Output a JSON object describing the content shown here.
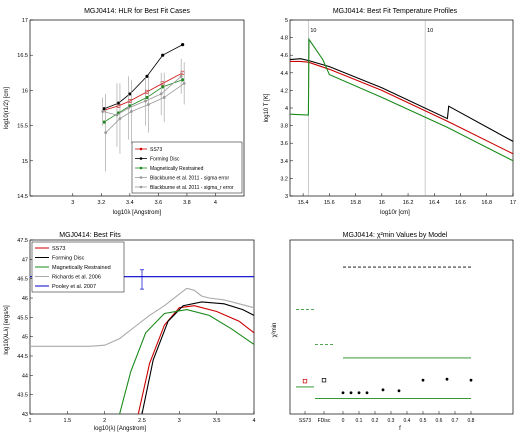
{
  "chart_data": [
    {
      "type": "line",
      "title": "MGJ0414:  HLR for Best Fit Cases",
      "xlabel": "log10λ [Angstrom]",
      "ylabel": "log10(r1/2) [cm]",
      "xlim": [
        2.7,
        4.2
      ],
      "ylim": [
        14.5,
        17.0
      ],
      "xticks": [
        "3",
        "3.2",
        "3.4",
        "3.6",
        "3.8",
        "4"
      ],
      "yticks": [
        "14.5",
        "15",
        "15.5",
        "16",
        "16.5",
        "17"
      ],
      "legend_position": "lower-right",
      "x": [
        3.22,
        3.32,
        3.4,
        3.52,
        3.63,
        3.77
      ],
      "series": [
        {
          "name": "SS73",
          "color": "#cc0000",
          "values": [
            15.72,
            15.78,
            15.85,
            15.98,
            16.1,
            16.25
          ]
        },
        {
          "name": "Forming Disc",
          "color": "#000000",
          "values": [
            15.74,
            15.82,
            15.95,
            16.2,
            16.5,
            16.65
          ]
        },
        {
          "name": "Magnetically Restrained",
          "color": "#1a8a1a",
          "values": [
            15.55,
            15.68,
            15.78,
            15.9,
            16.05,
            16.15
          ]
        },
        {
          "name": "Blackburne et al. 2011 - sigma error",
          "color": "#999999",
          "values": [
            15.7,
            15.65,
            15.75,
            15.85,
            15.95,
            16.2
          ],
          "err": [
            0.2,
            0.45,
            0.45,
            0.35,
            0.3,
            0.25
          ]
        },
        {
          "name": "Blackburne et al. 2011 - sigma_r error",
          "color": "#999999",
          "values": [
            15.4,
            15.6,
            15.7,
            15.8,
            15.9,
            16.1
          ],
          "err": [
            0.55,
            0.5,
            0.45,
            0.4,
            0.35,
            0.3
          ]
        }
      ]
    },
    {
      "type": "line",
      "title": "MGJ0414:  Best Fit Temperature Profiles",
      "xlabel": "log10r [cm]",
      "ylabel": "log10 T [K]",
      "xlim": [
        15.3,
        17.0
      ],
      "ylim": [
        3.0,
        5.0
      ],
      "xticks": [
        "15.4",
        "15.6",
        "15.8",
        "16",
        "16.2",
        "16.4",
        "16.6",
        "16.8",
        "17"
      ],
      "yticks": [
        "3",
        "3.2",
        "3.4",
        "3.6",
        "3.8",
        "4",
        "4.2",
        "4.4",
        "4.6",
        "4.8",
        "5"
      ],
      "annotations": [
        "10",
        "10"
      ],
      "vlines": [
        15.44,
        16.33
      ],
      "series": [
        {
          "name": "SS73",
          "color": "#cc0000",
          "x": [
            15.3,
            15.38,
            15.44,
            15.6,
            16.0,
            16.5,
            17.0
          ],
          "values": [
            4.53,
            4.53,
            4.52,
            4.44,
            4.2,
            3.85,
            3.48
          ]
        },
        {
          "name": "Forming Disc",
          "color": "#000000",
          "x": [
            15.3,
            15.38,
            15.44,
            15.6,
            16.0,
            16.5,
            16.51,
            17.0
          ],
          "values": [
            4.55,
            4.56,
            4.54,
            4.47,
            4.23,
            3.88,
            4.02,
            3.62
          ]
        },
        {
          "name": "Magnetically Restrained",
          "color": "#1a8a1a",
          "x": [
            15.3,
            15.44,
            15.445,
            15.55,
            15.6,
            16.0,
            16.5,
            17.0
          ],
          "values": [
            3.93,
            3.92,
            4.78,
            4.55,
            4.38,
            4.12,
            3.78,
            3.4
          ]
        }
      ]
    },
    {
      "type": "line",
      "title": "MGJ0414:  Best Fits",
      "xlabel": "log10(λ) [Angstrom]",
      "ylabel": "log10(λLλ) [ergs/s]",
      "xlim": [
        1.0,
        4.0
      ],
      "ylim": [
        43.0,
        47.5
      ],
      "xticks": [
        "1",
        "1.5",
        "2",
        "2.5",
        "3",
        "3.5",
        "4"
      ],
      "yticks": [
        "43",
        "43.5",
        "44",
        "44.5",
        "45",
        "45.5",
        "46",
        "46.5",
        "47",
        "47.5"
      ],
      "legend_position": "top-left",
      "series": [
        {
          "name": "SS73",
          "color": "#cc0000",
          "x": [
            2.45,
            2.6,
            2.8,
            3.0,
            3.2,
            3.5,
            3.8,
            4.0
          ],
          "values": [
            43.0,
            44.3,
            45.3,
            45.75,
            45.8,
            45.65,
            45.4,
            45.1
          ]
        },
        {
          "name": "Forming Disc",
          "color": "#000000",
          "x": [
            2.5,
            2.65,
            2.85,
            3.05,
            3.3,
            3.6,
            3.85,
            4.0
          ],
          "values": [
            43.0,
            44.4,
            45.4,
            45.8,
            45.9,
            45.85,
            45.7,
            45.55
          ]
        },
        {
          "name": "Magnetically Restrained",
          "color": "#1a8a1a",
          "x": [
            2.2,
            2.35,
            2.55,
            2.8,
            3.1,
            3.4,
            3.7,
            4.0
          ],
          "values": [
            43.0,
            44.1,
            45.1,
            45.6,
            45.7,
            45.55,
            45.2,
            44.8
          ]
        },
        {
          "name": "Richards et al. 2006",
          "color": "#aaaaaa",
          "x": [
            1.0,
            1.8,
            2.0,
            2.2,
            2.4,
            2.6,
            2.8,
            3.0,
            3.1,
            3.2,
            3.3,
            3.4,
            3.6,
            3.8,
            4.0
          ],
          "values": [
            44.75,
            44.75,
            44.78,
            44.95,
            45.25,
            45.55,
            45.8,
            46.1,
            46.25,
            46.2,
            46.05,
            46.0,
            45.95,
            45.85,
            45.75
          ]
        },
        {
          "name": "Pooley et al. 2007",
          "color": "#0000cc",
          "x": [
            1.0,
            4.0
          ],
          "values": [
            46.55,
            46.55
          ]
        }
      ],
      "point": {
        "x": 2.5,
        "y": 46.48,
        "err": 0.25
      }
    },
    {
      "type": "scatter",
      "title": "MGJ0414:  χ²min Values by Model",
      "xlabel": "f",
      "ylabel": "χ²min",
      "xticks": [
        "SS73",
        "FDisc",
        "0",
        "0.1",
        "0.2",
        "0.3",
        "0.4",
        "0.5",
        "0.6",
        "0.7",
        "0.8"
      ],
      "points": [
        11,
        11,
        11,
        11,
        12.5,
        12,
        17.5,
        18,
        17.5
      ],
      "points_f": [
        0.0,
        0.05,
        0.1,
        0.15,
        0.25,
        0.35,
        0.5,
        0.65,
        0.8
      ],
      "ss73_point": 17,
      "fdisc_point": 17.5,
      "hlines": [
        {
          "label": "black dashed",
          "value": 76
        },
        {
          "label": "green dashed SS73",
          "value": 54
        },
        {
          "label": "green dashed FDisc",
          "value": 36
        },
        {
          "label": "green solid upper",
          "value": 29
        },
        {
          "label": "green solid SS73",
          "value": 14
        },
        {
          "label": "green solid lower",
          "value": 8
        }
      ]
    }
  ]
}
